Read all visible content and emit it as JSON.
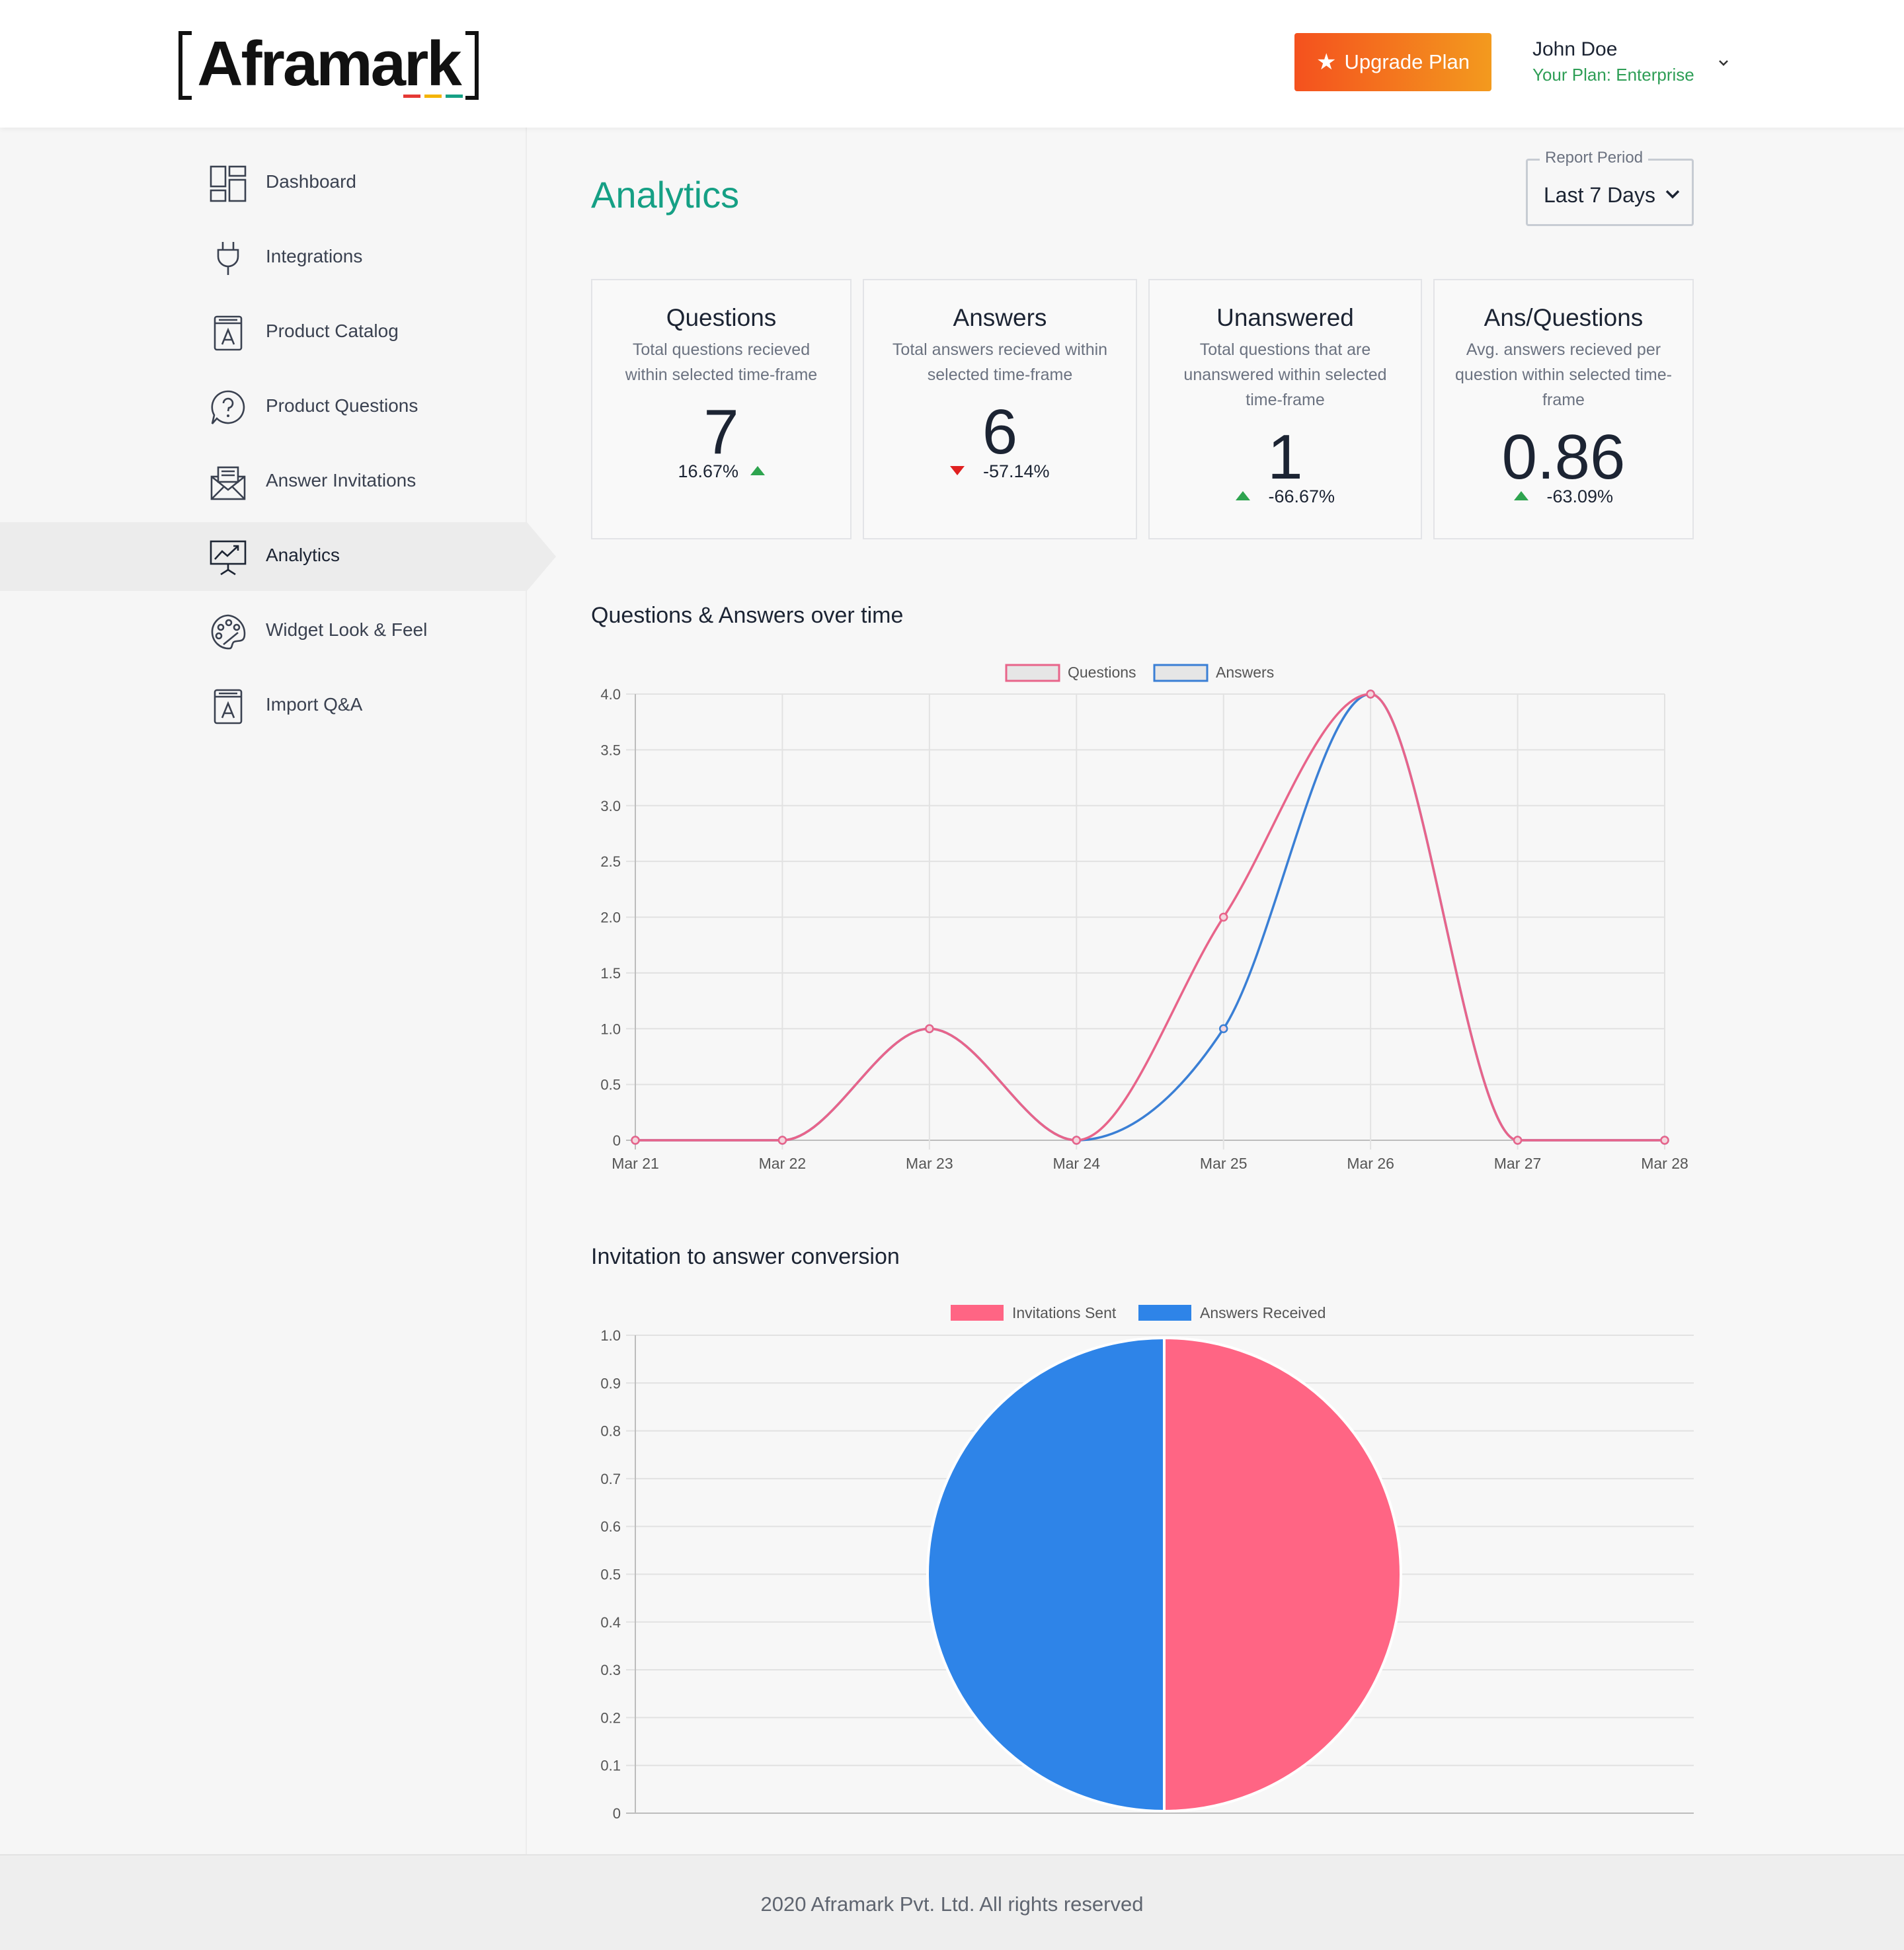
{
  "header": {
    "logo_text": "Aframark",
    "upgrade_label": "Upgrade Plan",
    "user_name": "John Doe",
    "plan_label": "Your Plan: Enterprise"
  },
  "sidebar": {
    "items": [
      {
        "label": "Dashboard",
        "icon": "dashboard-icon"
      },
      {
        "label": "Integrations",
        "icon": "plug-icon"
      },
      {
        "label": "Product Catalog",
        "icon": "catalog-icon"
      },
      {
        "label": "Product Questions",
        "icon": "question-icon"
      },
      {
        "label": "Answer Invitations",
        "icon": "invitation-icon"
      },
      {
        "label": "Analytics",
        "icon": "analytics-icon",
        "active": true
      },
      {
        "label": "Widget Look & Feel",
        "icon": "palette-icon"
      },
      {
        "label": "Import Q&A",
        "icon": "import-icon"
      }
    ]
  },
  "main": {
    "title": "Analytics",
    "report_period": {
      "legend": "Report Period",
      "value": "Last 7 Days"
    },
    "stats": [
      {
        "title": "Questions",
        "desc": "Total questions recieved within selected time-frame",
        "value": "7",
        "change": "16.67%",
        "trend": "up"
      },
      {
        "title": "Answers",
        "desc": "Total answers recieved within selected time-frame",
        "value": "6",
        "change": "-57.14%",
        "trend": "down"
      },
      {
        "title": "Unanswered",
        "desc": "Total questions that are unanswered within selected time-frame",
        "value": "1",
        "change": "-66.67%",
        "trend": "up"
      },
      {
        "title": "Ans/Questions",
        "desc": "Avg. answers recieved per question within selected time-frame",
        "value": "0.86",
        "change": "-63.09%",
        "trend": "up"
      }
    ],
    "line_chart_title": "Questions & Answers over time",
    "pie_chart_title": "Invitation to answer conversion"
  },
  "chart_data": [
    {
      "type": "line",
      "title": "Questions & Answers over time",
      "categories": [
        "Mar 21",
        "Mar 22",
        "Mar 23",
        "Mar 24",
        "Mar 25",
        "Mar 26",
        "Mar 27",
        "Mar 28"
      ],
      "series": [
        {
          "name": "Questions",
          "values": [
            0,
            0,
            1,
            0,
            2,
            4,
            0,
            0
          ],
          "color": "#e8648a"
        },
        {
          "name": "Answers",
          "values": [
            0,
            0,
            1,
            0,
            1,
            4,
            0,
            0
          ],
          "color": "#3a7fd5"
        }
      ],
      "ylim": [
        0,
        4
      ],
      "yticks": [
        "0",
        "0.5",
        "1.0",
        "1.5",
        "2.0",
        "2.5",
        "3.0",
        "3.5",
        "4.0"
      ],
      "grid": true,
      "legend": "top-center"
    },
    {
      "type": "pie",
      "title": "Invitation to answer conversion",
      "labels": [
        "Invitations Sent",
        "Answers Received"
      ],
      "values": [
        1,
        1
      ],
      "colors": [
        "#ff6584",
        "#2e84e8"
      ],
      "yticks": [
        "0",
        "0.1",
        "0.2",
        "0.3",
        "0.4",
        "0.5",
        "0.6",
        "0.7",
        "0.8",
        "0.9",
        "1.0"
      ],
      "grid": true,
      "legend": "top-center"
    }
  ],
  "footer": {
    "text": "2020 Aframark Pvt. Ltd. All rights reserved"
  }
}
